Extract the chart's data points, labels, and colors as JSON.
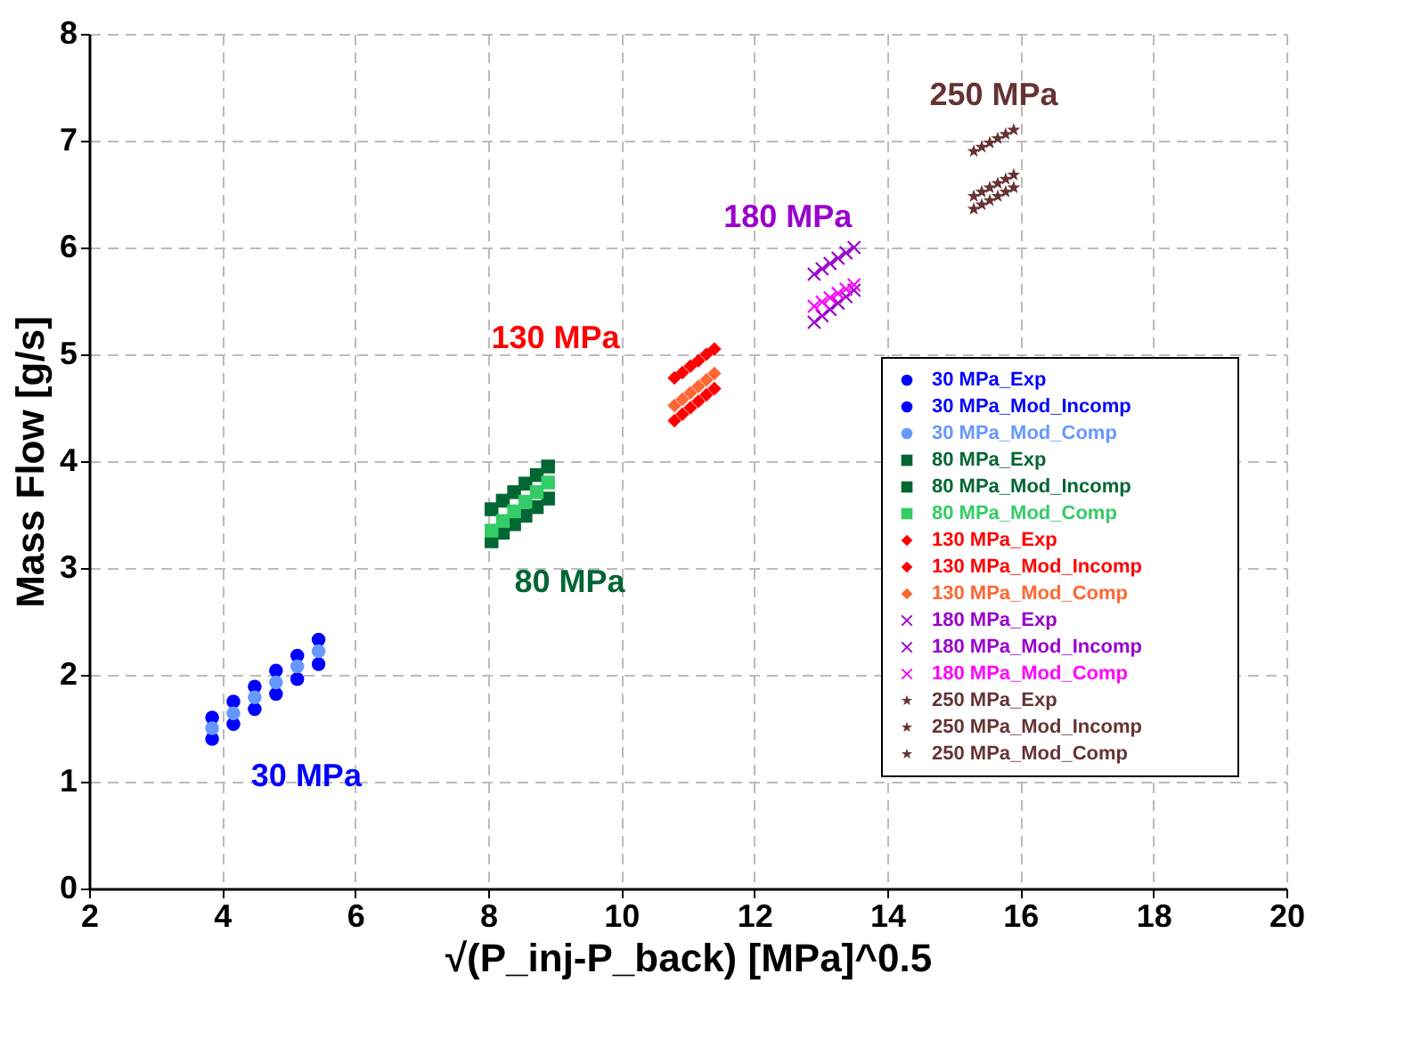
{
  "chart_data": {
    "type": "scatter",
    "xlabel": "√(P_inj-P_back)  [MPa]^0.5",
    "ylabel": "Mass Flow  [g/s]",
    "xlim": [
      2,
      20
    ],
    "ylim": [
      0,
      8
    ],
    "xticks": [
      2,
      4,
      6,
      8,
      10,
      12,
      14,
      16,
      18,
      20
    ],
    "yticks": [
      0,
      1,
      2,
      3,
      4,
      5,
      6,
      7,
      8
    ],
    "grid": true,
    "legend": "bottom right",
    "annotations": [
      "30 MPa",
      "80 MPa",
      "130 MPa",
      "180 MPa",
      "250 MPa"
    ],
    "series": [
      {
        "name": "30 MPa_Exp",
        "color": "#0000ff",
        "marker": "circle",
        "x": [
          3.85,
          4.17,
          4.49,
          4.81,
          5.13,
          5.45
        ],
        "values": [
          1.4,
          1.54,
          1.68,
          1.82,
          1.96,
          2.1
        ]
      },
      {
        "name": "30 MPa_Mod_Incomp",
        "color": "#0000ff",
        "marker": "circle",
        "x": [
          3.85,
          4.17,
          4.49,
          4.81,
          5.13,
          5.45
        ],
        "values": [
          1.6,
          1.75,
          1.89,
          2.04,
          2.18,
          2.33
        ]
      },
      {
        "name": "30 MPa_Mod_Comp",
        "color": "#6699ff",
        "marker": "circle",
        "x": [
          3.85,
          4.17,
          4.49,
          4.81,
          5.13,
          5.45
        ],
        "values": [
          1.5,
          1.64,
          1.79,
          1.93,
          2.08,
          2.22
        ]
      },
      {
        "name": "80 MPa_Exp",
        "color": "#006633",
        "marker": "square",
        "x": [
          8.05,
          8.22,
          8.39,
          8.56,
          8.73,
          8.9
        ],
        "values": [
          3.25,
          3.33,
          3.41,
          3.49,
          3.57,
          3.65
        ]
      },
      {
        "name": "80 MPa_Mod_Incomp",
        "color": "#006633",
        "marker": "square",
        "x": [
          8.05,
          8.22,
          8.39,
          8.56,
          8.73,
          8.9
        ],
        "values": [
          3.55,
          3.63,
          3.71,
          3.79,
          3.87,
          3.95
        ]
      },
      {
        "name": "80 MPa_Mod_Comp",
        "color": "#33cc66",
        "marker": "square",
        "x": [
          8.05,
          8.22,
          8.39,
          8.56,
          8.73,
          8.9
        ],
        "values": [
          3.35,
          3.44,
          3.53,
          3.62,
          3.71,
          3.8
        ]
      },
      {
        "name": "130 MPa_Exp",
        "color": "#ff0000",
        "marker": "diamond",
        "x": [
          10.8,
          10.92,
          11.04,
          11.16,
          11.28,
          11.4
        ],
        "values": [
          4.38,
          4.44,
          4.5,
          4.56,
          4.62,
          4.68
        ]
      },
      {
        "name": "130 MPa_Mod_Incomp",
        "color": "#ff0000",
        "marker": "diamond",
        "x": [
          10.8,
          10.92,
          11.04,
          11.16,
          11.28,
          11.4
        ],
        "values": [
          4.78,
          4.83,
          4.89,
          4.94,
          5.0,
          5.05
        ]
      },
      {
        "name": "130 MPa_Mod_Comp",
        "color": "#ff6633",
        "marker": "diamond",
        "x": [
          10.8,
          10.92,
          11.04,
          11.16,
          11.28,
          11.4
        ],
        "values": [
          4.52,
          4.58,
          4.64,
          4.7,
          4.76,
          4.82
        ]
      },
      {
        "name": "180 MPa_Exp",
        "color": "#9900cc",
        "marker": "cross",
        "x": [
          12.9,
          13.02,
          13.14,
          13.26,
          13.38,
          13.5
        ],
        "values": [
          5.3,
          5.36,
          5.42,
          5.48,
          5.54,
          5.6
        ]
      },
      {
        "name": "180 MPa_Mod_Incomp",
        "color": "#9900cc",
        "marker": "cross",
        "x": [
          12.9,
          13.02,
          13.14,
          13.26,
          13.38,
          13.5
        ],
        "values": [
          5.75,
          5.8,
          5.85,
          5.9,
          5.95,
          6.0
        ]
      },
      {
        "name": "180 MPa_Mod_Comp",
        "color": "#ff00ff",
        "marker": "cross",
        "x": [
          12.9,
          13.02,
          13.14,
          13.26,
          13.38,
          13.5
        ],
        "values": [
          5.45,
          5.49,
          5.53,
          5.57,
          5.61,
          5.65
        ]
      },
      {
        "name": "250 MPa_Exp",
        "color": "#663333",
        "marker": "star",
        "x": [
          15.3,
          15.42,
          15.54,
          15.66,
          15.78,
          15.9
        ],
        "values": [
          6.36,
          6.4,
          6.44,
          6.48,
          6.52,
          6.56
        ]
      },
      {
        "name": "250 MPa_Mod_Incomp",
        "color": "#663333",
        "marker": "star",
        "x": [
          15.3,
          15.42,
          15.54,
          15.66,
          15.78,
          15.9
        ],
        "values": [
          6.9,
          6.94,
          6.98,
          7.02,
          7.06,
          7.1
        ]
      },
      {
        "name": "250 MPa_Mod_Comp",
        "color": "#663333",
        "marker": "star",
        "x": [
          15.3,
          15.42,
          15.54,
          15.66,
          15.78,
          15.9
        ],
        "values": [
          6.48,
          6.52,
          6.56,
          6.6,
          6.64,
          6.68
        ]
      }
    ]
  }
}
